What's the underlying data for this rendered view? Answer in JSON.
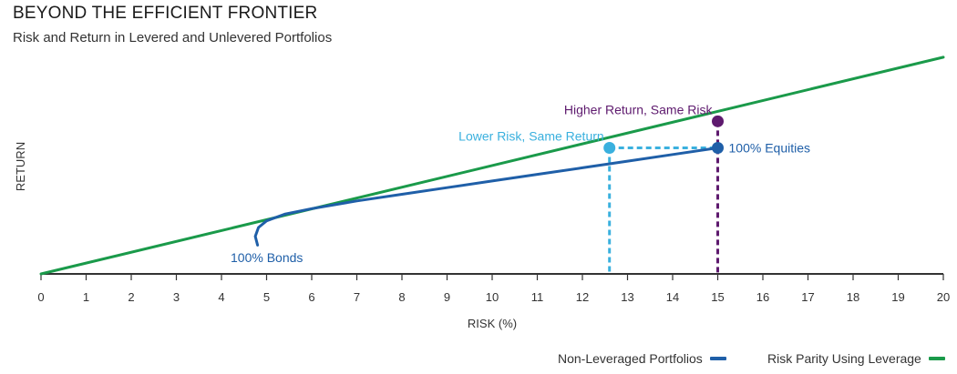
{
  "title": "BEYOND THE EFFICIENT FRONTIER",
  "subtitle": "Risk and Return in Levered and Unlevered Portfolios",
  "colors": {
    "frontier": "#1f5fa8",
    "leverage": "#1a9a4a",
    "lower_risk": "#3ab0de",
    "higher_return": "#5e1a6e",
    "axis": "#333333"
  },
  "chart_data": {
    "type": "line",
    "xlabel": "RISK (%)",
    "ylabel": "RETURN",
    "xlim": [
      0,
      20
    ],
    "xticks": [
      0,
      1,
      2,
      3,
      4,
      5,
      6,
      7,
      8,
      9,
      10,
      11,
      12,
      13,
      14,
      15,
      16,
      17,
      18,
      19,
      20
    ],
    "ylim": [
      0,
      1
    ],
    "series": [
      {
        "name": "Non-Leveraged Portfolios",
        "color": "#1f5fa8",
        "x": [
          4.8,
          4.75,
          4.82,
          5.0,
          5.4,
          6.0,
          7.0,
          8.0,
          9.0,
          10.0,
          11.0,
          12.0,
          13.0,
          14.0,
          15.0
        ],
        "y": [
          0.13,
          0.17,
          0.21,
          0.24,
          0.27,
          0.295,
          0.33,
          0.36,
          0.39,
          0.42,
          0.45,
          0.48,
          0.51,
          0.54,
          0.57
        ]
      },
      {
        "name": "Risk Parity Using Leverage",
        "color": "#1a9a4a",
        "x": [
          0,
          20
        ],
        "y": [
          0,
          0.98
        ]
      }
    ],
    "points": [
      {
        "label": "100% Bonds",
        "x": 4.8,
        "y": 0.13,
        "marker": false
      },
      {
        "label": "100% Equities",
        "x": 15.0,
        "y": 0.57,
        "marker": true
      },
      {
        "label": "Lower Risk, Same Return",
        "x": 12.6,
        "y": 0.57,
        "marker": true
      },
      {
        "label": "Higher Return, Same Risk",
        "x": 15.0,
        "y": 0.69,
        "marker": true
      }
    ]
  },
  "annotations": {
    "bonds": "100% Bonds",
    "equities": "100% Equities",
    "lower_risk": "Lower Risk, Same Return",
    "higher_return": "Higher Return, Same Risk"
  },
  "legend": {
    "frontier": "Non-Leveraged Portfolios",
    "leverage": "Risk Parity Using Leverage"
  }
}
